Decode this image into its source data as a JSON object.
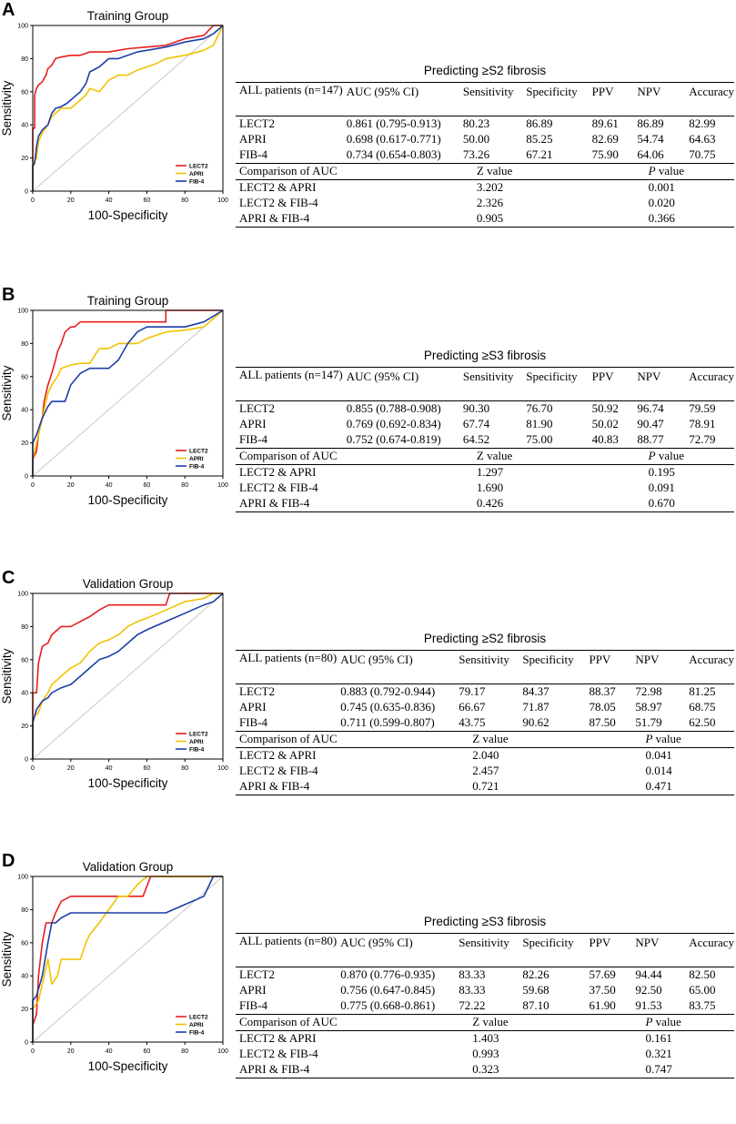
{
  "colors": {
    "LECT2": "#e81e1e",
    "APRI": "#f2c200",
    "FIB-4": "#1c3fa8",
    "diagonal": "#c8c8c8"
  },
  "panels": [
    {
      "letter": "A",
      "chart_data": {
        "type": "line",
        "title": "Training Group",
        "xlabel": "100-Specificity",
        "ylabel": "Sensitivity",
        "xlim": [
          0,
          100
        ],
        "ylim": [
          0,
          100
        ],
        "xticks": [
          "0",
          "20",
          "40",
          "60",
          "80",
          "100"
        ],
        "yticks": [
          "0",
          "20",
          "40",
          "60",
          "80",
          "100"
        ],
        "legend_position": "bottom-right",
        "series": [
          {
            "name": "LECT2",
            "color": "#e81e1e",
            "x": [
              0,
              0,
              1,
              1,
              2,
              3,
              4,
              5,
              6,
              7,
              8,
              10,
              12,
              15,
              20,
              25,
              30,
              40,
              50,
              60,
              70,
              80,
              90,
              95,
              100
            ],
            "y": [
              0,
              38,
              38,
              58,
              62,
              64,
              65,
              66,
              68,
              70,
              74,
              76,
              80,
              81,
              82,
              82,
              84,
              84,
              86,
              87,
              88,
              92,
              94,
              100,
              100
            ]
          },
          {
            "name": "APRI",
            "color": "#f2c200",
            "x": [
              0,
              0,
              2,
              3,
              5,
              8,
              10,
              13,
              15,
              20,
              25,
              28,
              30,
              35,
              40,
              45,
              50,
              55,
              60,
              65,
              70,
              80,
              90,
              95,
              100
            ],
            "y": [
              0,
              17,
              20,
              30,
              35,
              40,
              45,
              48,
              50,
              50,
              55,
              58,
              62,
              60,
              67,
              70,
              70,
              73,
              75,
              77,
              80,
              82,
              85,
              88,
              100
            ]
          },
          {
            "name": "FIB-4",
            "color": "#1c3fa8",
            "x": [
              0,
              0,
              1,
              2,
              3,
              5,
              8,
              10,
              12,
              15,
              18,
              20,
              25,
              28,
              30,
              35,
              40,
              45,
              50,
              55,
              60,
              70,
              80,
              90,
              95,
              100
            ],
            "y": [
              0,
              15,
              17,
              27,
              33,
              37,
              40,
              47,
              50,
              51,
              53,
              55,
              60,
              65,
              72,
              75,
              80,
              80,
              82,
              84,
              85,
              87,
              90,
              92,
              95,
              100
            ]
          }
        ]
      },
      "table": {
        "title": "Predicting ≥S2 fibrosis",
        "header": [
          "ALL patients (n=147)",
          "AUC (95% CI)",
          "Sensitivity",
          "Specificity",
          "PPV",
          "NPV",
          "Accuracy"
        ],
        "rows": [
          [
            "LECT2",
            "0.861 (0.795-0.913)",
            "80.23",
            "86.89",
            "89.61",
            "86.89",
            "82.99"
          ],
          [
            "APRI",
            "0.698 (0.617-0.771)",
            "50.00",
            "85.25",
            "82.69",
            "54.74",
            "64.63"
          ],
          [
            "FIB-4",
            "0.734 (0.654-0.803)",
            "73.26",
            "67.21",
            "75.90",
            "64.06",
            "70.75"
          ]
        ],
        "comparison_header": [
          "Comparison of AUC",
          "Z value",
          "P",
          " value"
        ],
        "comparisons": [
          [
            "LECT2 & APRI",
            "3.202",
            "0.001"
          ],
          [
            "LECT2 & FIB-4",
            "2.326",
            "0.020"
          ],
          [
            "APRI & FIB-4",
            "0.905",
            "0.366"
          ]
        ]
      }
    },
    {
      "letter": "B",
      "chart_data": {
        "type": "line",
        "title": "Training Group",
        "xlabel": "100-Specificity",
        "ylabel": "Sensitivity",
        "xlim": [
          0,
          100
        ],
        "ylim": [
          0,
          100
        ],
        "xticks": [
          "0",
          "20",
          "40",
          "60",
          "80",
          "100"
        ],
        "yticks": [
          "0",
          "20",
          "40",
          "60",
          "80",
          "100"
        ],
        "legend_position": "bottom-right",
        "series": [
          {
            "name": "LECT2",
            "color": "#e81e1e",
            "x": [
              0,
              0,
              2,
              3,
              5,
              6,
              8,
              10,
              12,
              13,
              15,
              17,
              20,
              22,
              25,
              30,
              40,
              50,
              60,
              70,
              70,
              95,
              100
            ],
            "y": [
              0,
              10,
              15,
              25,
              35,
              45,
              55,
              62,
              70,
              75,
              80,
              87,
              90,
              90,
              93,
              93,
              93,
              93,
              93,
              93,
              100,
              100,
              100
            ]
          },
          {
            "name": "APRI",
            "color": "#f2c200",
            "x": [
              0,
              0,
              2,
              4,
              6,
              8,
              10,
              13,
              15,
              20,
              25,
              30,
              35,
              40,
              45,
              55,
              60,
              70,
              80,
              90,
              95,
              100
            ],
            "y": [
              0,
              10,
              20,
              30,
              40,
              50,
              55,
              60,
              65,
              67,
              68,
              68,
              77,
              77,
              80,
              80,
              83,
              87,
              88,
              90,
              95,
              100
            ]
          },
          {
            "name": "FIB-4",
            "color": "#1c3fa8",
            "x": [
              0,
              0,
              2,
              5,
              8,
              10,
              13,
              17,
              20,
              25,
              30,
              35,
              40,
              45,
              50,
              55,
              60,
              70,
              80,
              90,
              100
            ],
            "y": [
              0,
              20,
              25,
              35,
              42,
              45,
              45,
              45,
              55,
              62,
              65,
              65,
              65,
              70,
              80,
              87,
              90,
              90,
              90,
              93,
              100
            ]
          }
        ]
      },
      "table": {
        "title": "Predicting ≥S3 fibrosis",
        "header": [
          "ALL patients (n=147)",
          "AUC (95% CI)",
          "Sensitivity",
          "Specificity",
          "PPV",
          "NPV",
          "Accuracy"
        ],
        "rows": [
          [
            "LECT2",
            "0.855 (0.788-0.908)",
            "90.30",
            "76.70",
            "50.92",
            "96.74",
            "79.59"
          ],
          [
            "APRI",
            "0.769 (0.692-0.834)",
            "67.74",
            "81.90",
            "50.02",
            "90.47",
            "78.91"
          ],
          [
            "FIB-4",
            "0.752 (0.674-0.819)",
            "64.52",
            "75.00",
            "40.83",
            "88.77",
            "72.79"
          ]
        ],
        "comparison_header": [
          "Comparison of AUC",
          "Z value",
          "P",
          " value"
        ],
        "comparisons": [
          [
            "LECT2 & APRI",
            "1.297",
            "0.195"
          ],
          [
            "LECT2 & FIB-4",
            "1.690",
            "0.091"
          ],
          [
            "APRI & FIB-4",
            "0.426",
            "0.670"
          ]
        ]
      }
    },
    {
      "letter": "C",
      "chart_data": {
        "type": "line",
        "title": "Validation Group",
        "xlabel": "100-Specificity",
        "ylabel": "Sensitivity",
        "xlim": [
          0,
          100
        ],
        "ylim": [
          0,
          100
        ],
        "xticks": [
          "0",
          "20",
          "40",
          "60",
          "80",
          "100"
        ],
        "yticks": [
          "0",
          "20",
          "40",
          "60",
          "80",
          "100"
        ],
        "legend_position": "bottom-right",
        "series": [
          {
            "name": "LECT2",
            "color": "#e81e1e",
            "x": [
              0,
              0,
              2,
              3,
              5,
              8,
              10,
              15,
              20,
              25,
              30,
              35,
              40,
              50,
              60,
              70,
              72,
              90,
              100
            ],
            "y": [
              0,
              40,
              40,
              58,
              68,
              70,
              75,
              80,
              80,
              83,
              86,
              90,
              93,
              93,
              93,
              93,
              100,
              100,
              100
            ]
          },
          {
            "name": "APRI",
            "color": "#f2c200",
            "x": [
              0,
              0,
              3,
              5,
              8,
              10,
              15,
              20,
              25,
              30,
              35,
              40,
              45,
              50,
              55,
              60,
              70,
              80,
              90,
              95,
              100
            ],
            "y": [
              0,
              25,
              28,
              35,
              40,
              45,
              50,
              55,
              58,
              65,
              70,
              72,
              75,
              80,
              83,
              85,
              90,
              95,
              97,
              100,
              100
            ]
          },
          {
            "name": "FIB-4",
            "color": "#1c3fa8",
            "x": [
              0,
              0,
              2,
              5,
              8,
              10,
              15,
              20,
              25,
              30,
              35,
              40,
              45,
              50,
              55,
              60,
              70,
              80,
              90,
              95,
              100
            ],
            "y": [
              0,
              22,
              30,
              35,
              37,
              40,
              43,
              45,
              50,
              55,
              60,
              62,
              65,
              70,
              75,
              78,
              83,
              88,
              93,
              95,
              100
            ]
          }
        ]
      },
      "table": {
        "title": "Predicting ≥S2 fibrosis",
        "header": [
          "ALL patients (n=80)",
          "AUC (95% CI)",
          "Sensitivity",
          "Specificity",
          "PPV",
          "NPV",
          "Accuracy"
        ],
        "rows": [
          [
            "LECT2",
            "0.883 (0.792-0.944)",
            "79.17",
            "84.37",
            "88.37",
            "72.98",
            "81.25"
          ],
          [
            "APRI",
            "0.745 (0.635-0.836)",
            "66.67",
            "71.87",
            "78.05",
            "58.97",
            "68.75"
          ],
          [
            "FIB-4",
            "0.711 (0.599-0.807)",
            "43.75",
            "90.62",
            "87.50",
            "51.79",
            "62.50"
          ]
        ],
        "comparison_header": [
          "Comparison of AUC",
          "Z value",
          "P",
          " value"
        ],
        "comparisons": [
          [
            "LECT2 & APRI",
            "2.040",
            "0.041"
          ],
          [
            "LECT2 & FIB-4",
            "2.457",
            "0.014"
          ],
          [
            "APRI & FIB-4",
            "0.721",
            "0.471"
          ]
        ]
      }
    },
    {
      "letter": "D",
      "chart_data": {
        "type": "line",
        "title": "Validation Group",
        "xlabel": "100-Specificity",
        "ylabel": "Sensitivity",
        "xlim": [
          0,
          100
        ],
        "ylim": [
          0,
          100
        ],
        "xticks": [
          "0",
          "20",
          "40",
          "60",
          "80",
          "100"
        ],
        "yticks": [
          "0",
          "20",
          "40",
          "60",
          "80",
          "100"
        ],
        "legend_position": "bottom-right",
        "series": [
          {
            "name": "LECT2",
            "color": "#e81e1e",
            "x": [
              0,
              0,
              2,
              3,
              5,
              7,
              10,
              12,
              15,
              20,
              30,
              40,
              50,
              58,
              62,
              70,
              80,
              100
            ],
            "y": [
              0,
              10,
              17,
              40,
              60,
              72,
              72,
              78,
              85,
              88,
              88,
              88,
              88,
              88,
              100,
              100,
              100,
              100
            ]
          },
          {
            "name": "APRI",
            "color": "#f2c200",
            "x": [
              0,
              0,
              3,
              5,
              8,
              10,
              13,
              15,
              20,
              25,
              28,
              30,
              35,
              40,
              45,
              50,
              55,
              60,
              70,
              80,
              90,
              100
            ],
            "y": [
              0,
              20,
              25,
              35,
              50,
              35,
              40,
              50,
              50,
              50,
              60,
              65,
              72,
              80,
              88,
              88,
              95,
              100,
              100,
              100,
              100,
              100
            ]
          },
          {
            "name": "FIB-4",
            "color": "#1c3fa8",
            "x": [
              0,
              0,
              2,
              5,
              8,
              10,
              12,
              15,
              20,
              30,
              40,
              50,
              60,
              70,
              80,
              90,
              95,
              100
            ],
            "y": [
              0,
              25,
              28,
              40,
              60,
              72,
              72,
              75,
              78,
              78,
              78,
              78,
              78,
              78,
              83,
              88,
              100,
              100
            ]
          }
        ]
      },
      "table": {
        "title": "Predicting ≥S3 fibrosis",
        "header": [
          "ALL patients (n=80)",
          "AUC (95% CI)",
          "Sensitivity",
          "Specificity",
          "PPV",
          "NPV",
          "Accuracy"
        ],
        "rows": [
          [
            "LECT2",
            "0.870 (0.776-0.935)",
            "83.33",
            "82.26",
            "57.69",
            "94.44",
            "82.50"
          ],
          [
            "APRI",
            "0.756 (0.647-0.845)",
            "83.33",
            "59.68",
            "37.50",
            "92.50",
            "65.00"
          ],
          [
            "FIB-4",
            "0.775 (0.668-0.861)",
            "72.22",
            "87.10",
            "61.90",
            "91.53",
            "83.75"
          ]
        ],
        "comparison_header": [
          "Comparison of AUC",
          "Z value",
          "P",
          " value"
        ],
        "comparisons": [
          [
            "LECT2 & APRI",
            "1.403",
            "0.161"
          ],
          [
            "LECT2 & FIB-4",
            "0.993",
            "0.321"
          ],
          [
            "APRI & FIB-4",
            "0.323",
            "0.747"
          ]
        ]
      }
    }
  ]
}
